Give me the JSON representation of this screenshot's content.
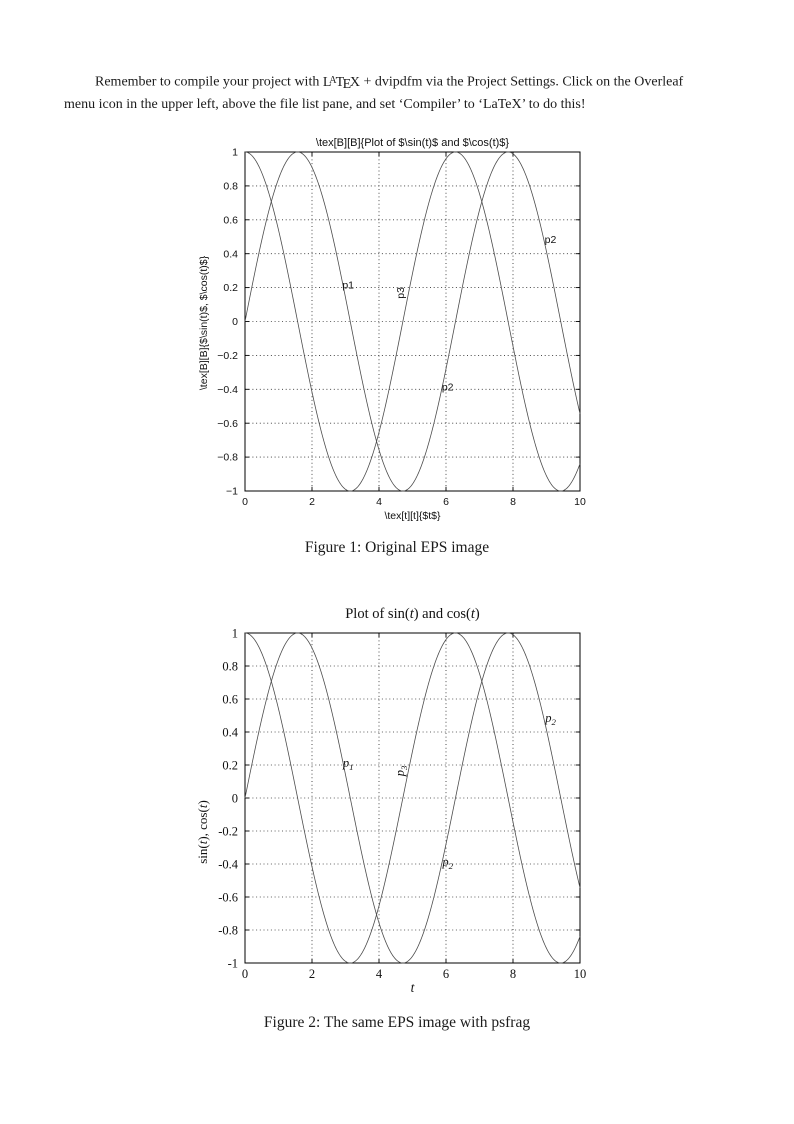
{
  "paragraph": {
    "line1_before_logo": "Remember to compile your project with ",
    "latex_logo": [
      "L",
      "A",
      "T",
      "E",
      "X"
    ],
    "line1_after_logo": " + dvipdfm via the Project Settings. Click on the Overleaf",
    "line2": "menu icon in the upper left, above the file list pane, and set ‘Compiler’ to ‘LaTeX’ to do this!"
  },
  "figures": [
    {
      "caption": "Figure 1: Original EPS image"
    },
    {
      "caption": "Figure 2: The same EPS image with psfrag"
    }
  ],
  "chart_data": [
    {
      "id": "fig1",
      "type": "line",
      "title": "\\tex[B][B]{Plot of $\\sin(t)$ and $\\cos(t)$}",
      "title_segments": [
        {
          "t": "\\tex[B][B]{Plot of $\\sin(t)$ and $\\cos(t)$}"
        }
      ],
      "xlabel": "\\tex[t][t]{$t$}",
      "xlabel_segments": [
        {
          "t": "\\tex[t][t]{$t$}"
        }
      ],
      "ylabel": "\\tex[B][B]{$\\sin(t)$, $\\cos(t)$}",
      "ylabel_segments": [
        {
          "t": "\\tex[B][B]{$\\sin(t)$, $\\cos(t)$}"
        }
      ],
      "xlim": [
        0,
        10
      ],
      "ylim": [
        -1,
        1
      ],
      "xtick_values": [
        0,
        2,
        4,
        6,
        8,
        10
      ],
      "xtick_labels": [
        "0",
        "2",
        "4",
        "6",
        "8",
        "10"
      ],
      "ytick_values": [
        1,
        0.8,
        0.6,
        0.4,
        0.2,
        0,
        -0.2,
        -0.4,
        -0.6,
        -0.8,
        -1
      ],
      "ytick_labels": [
        "1",
        "0.8",
        "0.6",
        "0.4",
        "0.2",
        "0",
        "−0.2",
        "−0.4",
        "−0.6",
        "−0.8",
        "−1"
      ],
      "grid": "dotted",
      "legend": "none",
      "series": [
        {
          "name": "sin(t)",
          "fn": "sin",
          "x_range": [
            0,
            10
          ]
        },
        {
          "name": "cos(t)",
          "fn": "cos",
          "x_range": [
            0,
            10
          ]
        }
      ],
      "annotations": [
        {
          "text": "p1",
          "x": 3.08,
          "y": 0.215,
          "rotate": 0
        },
        {
          "text": "p3",
          "x": 4.75,
          "y": 0.19,
          "rotate": -90
        },
        {
          "text": "p2",
          "x": 6.05,
          "y": -0.385,
          "rotate": 0
        },
        {
          "text": "p2",
          "x": 9.12,
          "y": 0.485,
          "rotate": 0
        }
      ]
    },
    {
      "id": "fig2",
      "type": "line",
      "title": "Plot of sin(t) and cos(t)",
      "title_segments": [
        {
          "t": "Plot of sin("
        },
        {
          "t": "t",
          "i": true
        },
        {
          "t": ") and cos("
        },
        {
          "t": "t",
          "i": true
        },
        {
          "t": ")"
        }
      ],
      "xlabel": "t",
      "xlabel_segments": [
        {
          "t": "t",
          "i": true
        }
      ],
      "ylabel": "sin(t), cos(t)",
      "ylabel_segments": [
        {
          "t": "sin("
        },
        {
          "t": "t",
          "i": true
        },
        {
          "t": "), cos("
        },
        {
          "t": "t",
          "i": true
        },
        {
          "t": ")"
        }
      ],
      "xlim": [
        0,
        10
      ],
      "ylim": [
        -1,
        1
      ],
      "xtick_values": [
        0,
        2,
        4,
        6,
        8,
        10
      ],
      "xtick_labels": [
        "0",
        "2",
        "4",
        "6",
        "8",
        "10"
      ],
      "ytick_values": [
        1,
        0.8,
        0.6,
        0.4,
        0.2,
        0,
        -0.2,
        -0.4,
        -0.6,
        -0.8,
        -1
      ],
      "ytick_labels": [
        "1",
        "0.8",
        "0.6",
        "0.4",
        "0.2",
        "0",
        "-0.2",
        "-0.4",
        "-0.6",
        "-0.8",
        "-1"
      ],
      "grid": "dotted",
      "legend": "none",
      "series": [
        {
          "name": "sin(t)",
          "fn": "sin",
          "x_range": [
            0,
            10
          ]
        },
        {
          "name": "cos(t)",
          "fn": "cos",
          "x_range": [
            0,
            10
          ]
        }
      ],
      "annotations": [
        {
          "text": "p",
          "sub": "1",
          "italic": true,
          "x": 3.08,
          "y": 0.215,
          "rotate": 0
        },
        {
          "text": "p",
          "sub": "3",
          "italic": true,
          "x": 4.75,
          "y": 0.19,
          "rotate": -90
        },
        {
          "text": "p",
          "sub": "2",
          "italic": true,
          "x": 6.05,
          "y": -0.385,
          "rotate": 0
        },
        {
          "text": "p",
          "sub": "2",
          "italic": true,
          "x": 9.12,
          "y": 0.485,
          "rotate": 0
        }
      ]
    }
  ]
}
